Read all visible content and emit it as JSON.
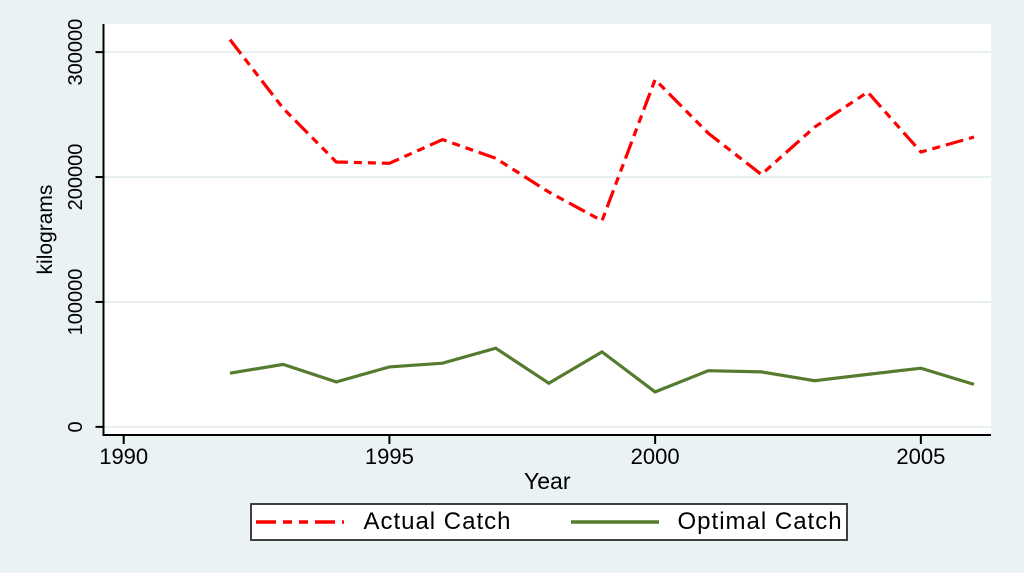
{
  "window": {
    "background_color": "#eaf2f3",
    "plot_background_color": "#ffffff",
    "gridline_color": "#e2ebf0",
    "axis_color": "#000000",
    "legend_border_color": "#3f3f3f",
    "text_color": "#000000"
  },
  "chart_data": {
    "type": "line",
    "title": "",
    "xlabel": "Year",
    "ylabel": "kilograms",
    "x_ticks": [
      1990,
      1995,
      2000,
      2005
    ],
    "x_tick_labels": [
      "1990",
      "1995",
      "2000",
      "2005"
    ],
    "y_ticks": [
      0,
      100000,
      200000,
      300000
    ],
    "y_tick_labels": [
      "0",
      "100000",
      "200000",
      "300000"
    ],
    "xlim": [
      1989.62,
      2006.32
    ],
    "ylim": [
      -6500,
      322500
    ],
    "grid": true,
    "legend_position": "bottom-center",
    "x": [
      1992,
      1993,
      1994,
      1995,
      1996,
      1997,
      1998,
      1999,
      2000,
      2001,
      2002,
      2003,
      2004,
      2005,
      2006
    ],
    "series": [
      {
        "name": "Actual Catch",
        "color": "#fe0000",
        "line_style": "longdash-dash",
        "values": [
          310000,
          255000,
          212000,
          211000,
          230000,
          215000,
          188000,
          165000,
          278000,
          235000,
          202000,
          240000,
          268000,
          220000,
          232000
        ]
      },
      {
        "name": "Optimal Catch",
        "color": "#557b2f",
        "line_style": "solid",
        "values": [
          43000,
          50000,
          36000,
          48000,
          51000,
          63000,
          35000,
          60000,
          28000,
          45000,
          44000,
          37000,
          42000,
          47000,
          34000
        ]
      }
    ]
  }
}
